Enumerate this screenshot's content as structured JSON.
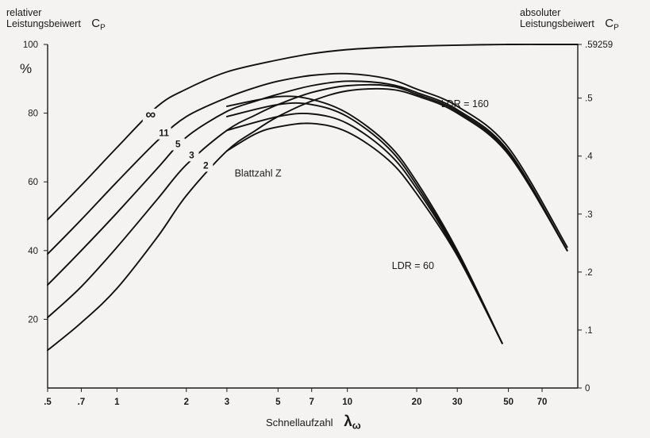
{
  "chart_data": {
    "type": "line",
    "left_axis_label_line1": "relativer",
    "left_axis_label_line2": "Leistungsbeiwert",
    "left_axis_symbol": "C",
    "left_axis_symbol_sub": "P",
    "left_axis_unit": "%",
    "right_axis_label_line1": "absoluter",
    "right_axis_label_line2": "Leistungsbeiwert",
    "right_axis_symbol": "C",
    "right_axis_symbol_sub": "P",
    "xlabel": "Schnellaufzahl",
    "xlabel_symbol": "λ",
    "xlabel_symbol_sub": "ω",
    "x_scale": "log",
    "xlim": [
      0.5,
      100
    ],
    "ylim": [
      0,
      100
    ],
    "x_ticks": [
      {
        "value": 0.5,
        "label": ".5"
      },
      {
        "value": 0.7,
        "label": ".7"
      },
      {
        "value": 1,
        "label": "1"
      },
      {
        "value": 2,
        "label": "2"
      },
      {
        "value": 3,
        "label": "3"
      },
      {
        "value": 5,
        "label": "5"
      },
      {
        "value": 7,
        "label": "7"
      },
      {
        "value": 10,
        "label": "10"
      },
      {
        "value": 20,
        "label": "20"
      },
      {
        "value": 30,
        "label": "30"
      },
      {
        "value": 50,
        "label": "50"
      },
      {
        "value": 70,
        "label": "70"
      }
    ],
    "y_ticks_left": [
      {
        "value": 20,
        "label": "20"
      },
      {
        "value": 40,
        "label": "40"
      },
      {
        "value": 60,
        "label": "60"
      },
      {
        "value": 80,
        "label": "80"
      },
      {
        "value": 100,
        "label": "100"
      }
    ],
    "y_ticks_right": [
      {
        "value": 0,
        "label": "0"
      },
      {
        "value": 0.1,
        "label": ".1"
      },
      {
        "value": 0.2,
        "label": ".2"
      },
      {
        "value": 0.3,
        "label": ".3"
      },
      {
        "value": 0.4,
        "label": ".4"
      },
      {
        "value": 0.5,
        "label": ".5"
      },
      {
        "value": 0.59259,
        "label": ".59259"
      }
    ],
    "right_axis_max_value": 0.59259,
    "grid": false,
    "legend": "none",
    "series": [
      {
        "name": "∞",
        "x": [
          0.5,
          0.7,
          1,
          1.5,
          2,
          3,
          5,
          7,
          10,
          15,
          20,
          30,
          50,
          70,
          100
        ],
        "y": [
          49,
          59,
          70,
          82,
          87,
          92,
          95.5,
          97.3,
          98.5,
          99.2,
          99.5,
          99.8,
          100,
          100,
          100
        ]
      },
      {
        "name": "11",
        "x": [
          0.5,
          0.7,
          1,
          1.5,
          2,
          3,
          4,
          5,
          7,
          10,
          15,
          20,
          30,
          50,
          90
        ],
        "y": [
          39,
          49,
          60,
          72,
          79,
          84.5,
          87.5,
          89.3,
          91,
          91.5,
          90,
          87,
          82,
          70,
          41
        ]
      },
      {
        "name": "5",
        "x": [
          0.5,
          0.7,
          1,
          1.5,
          2,
          3,
          4,
          5,
          7,
          10,
          15,
          20,
          30,
          50,
          90
        ],
        "y": [
          30,
          40,
          51,
          64,
          73,
          80.5,
          83.5,
          85.5,
          88,
          89.3,
          88.5,
          86,
          81,
          69,
          40
        ]
      },
      {
        "name": "3",
        "x": [
          0.5,
          0.7,
          1,
          1.5,
          2,
          3,
          4,
          5,
          7,
          10,
          15,
          20,
          30,
          50,
          90
        ],
        "y": [
          20.5,
          29.5,
          41,
          55,
          65,
          75,
          79.5,
          82.5,
          86,
          88,
          88,
          85.5,
          80.5,
          68.5,
          40
        ]
      },
      {
        "name": "2",
        "x": [
          0.5,
          0.7,
          1,
          1.5,
          2,
          3,
          4,
          5,
          7,
          10,
          15,
          20,
          30,
          50,
          90
        ],
        "y": [
          11,
          19,
          29,
          44,
          56,
          69,
          75,
          79,
          83.5,
          86.5,
          87,
          85,
          80,
          68,
          40
        ]
      },
      {
        "name": "",
        "x": [
          3,
          5,
          7,
          10,
          15,
          20,
          30,
          47
        ],
        "y": [
          82,
          84.8,
          84,
          80,
          71,
          60,
          40,
          13
        ]
      },
      {
        "name": "",
        "x": [
          3,
          5,
          7,
          10,
          15,
          20,
          30,
          47
        ],
        "y": [
          79,
          82.5,
          82.5,
          79,
          70,
          59,
          39.5,
          13
        ]
      },
      {
        "name": "",
        "x": [
          3,
          5,
          7,
          10,
          15,
          20,
          30,
          47
        ],
        "y": [
          75,
          79,
          79.8,
          77,
          68.5,
          58,
          39,
          13
        ]
      },
      {
        "name": "",
        "x": [
          3,
          4,
          5,
          7,
          10,
          15,
          20,
          30,
          47
        ],
        "y": [
          69,
          74,
          76,
          77,
          74.5,
          66.5,
          56.5,
          38.5,
          13
        ]
      }
    ],
    "annotations": [
      {
        "text": "∞",
        "x": 1.4,
        "y": 78.3
      },
      {
        "text": "11",
        "x": 1.6,
        "y": 73.3
      },
      {
        "text": "5",
        "x": 1.84,
        "y": 70.1
      },
      {
        "text": "3",
        "x": 2.11,
        "y": 66.9
      },
      {
        "text": "2",
        "x": 2.43,
        "y": 63.9
      },
      {
        "text": "Blattzahl  Z",
        "x": 3.24,
        "y": 61.6
      },
      {
        "text": "LDR  =  160",
        "x": 25.5,
        "y": 81.8
      },
      {
        "text": "LDR  =  60",
        "x": 15.6,
        "y": 34.6
      }
    ]
  }
}
